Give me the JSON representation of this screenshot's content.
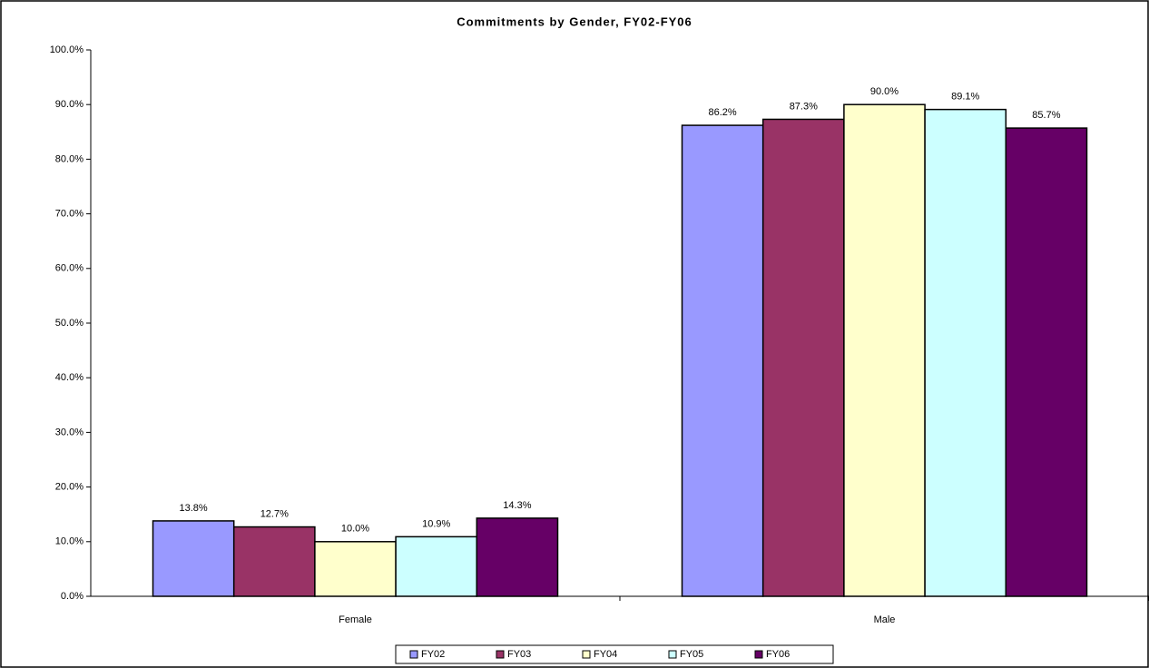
{
  "chart_data": {
    "type": "bar",
    "title": "Commitments by Gender, FY02-FY06",
    "categories": [
      "Female",
      "Male"
    ],
    "series": [
      {
        "name": "FY02",
        "color": "#9999ff",
        "values": [
          13.8,
          86.2
        ],
        "value_labels": [
          "13.8%",
          "86.2%"
        ]
      },
      {
        "name": "FY03",
        "color": "#993366",
        "values": [
          12.7,
          87.3
        ],
        "value_labels": [
          "12.7%",
          "87.3%"
        ]
      },
      {
        "name": "FY04",
        "color": "#ffffcc",
        "values": [
          10.0,
          90.0
        ],
        "value_labels": [
          "10.0%",
          "90.0%"
        ]
      },
      {
        "name": "FY05",
        "color": "#ccffff",
        "values": [
          10.9,
          89.1
        ],
        "value_labels": [
          "10.9%",
          "89.1%"
        ]
      },
      {
        "name": "FY06",
        "color": "#660066",
        "values": [
          14.3,
          85.7
        ],
        "value_labels": [
          "14.3%",
          "85.7%"
        ]
      }
    ],
    "ylim": [
      0,
      100
    ],
    "yticks": [
      {
        "value": 0,
        "label": "0.0%"
      },
      {
        "value": 10,
        "label": "10.0%"
      },
      {
        "value": 20,
        "label": "20.0%"
      },
      {
        "value": 30,
        "label": "30.0%"
      },
      {
        "value": 40,
        "label": "40.0%"
      },
      {
        "value": 50,
        "label": "50.0%"
      },
      {
        "value": 60,
        "label": "60.0%"
      },
      {
        "value": 70,
        "label": "70.0%"
      },
      {
        "value": 80,
        "label": "80.0%"
      },
      {
        "value": 90,
        "label": "90.0%"
      },
      {
        "value": 100,
        "label": "100.0%"
      }
    ],
    "grid": false,
    "legend": "bottom"
  }
}
